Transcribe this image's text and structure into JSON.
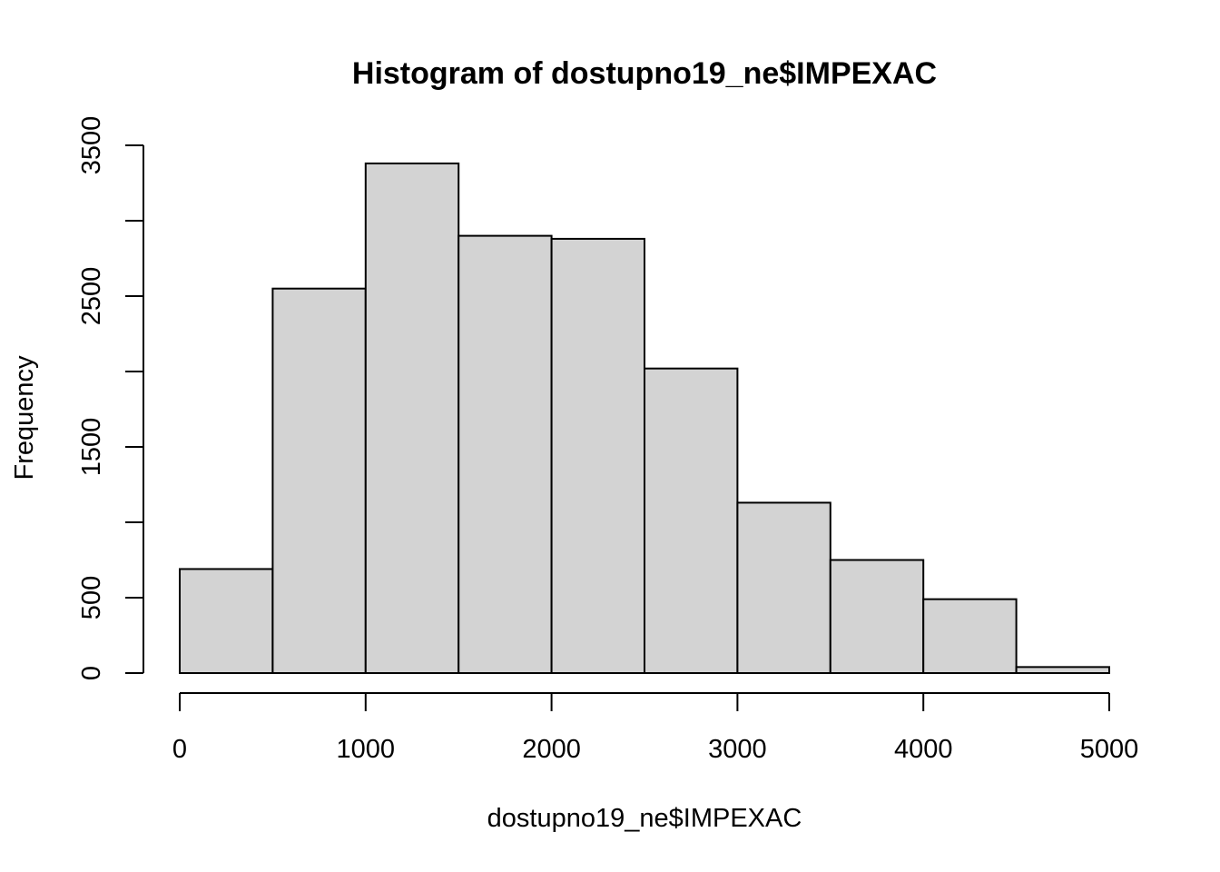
{
  "chart_data": {
    "type": "bar",
    "title": "Histogram of dostupno19_ne$IMPEXAC",
    "xlabel": "dostupno19_ne$IMPEXAC",
    "ylabel": "Frequency",
    "bins": [
      {
        "x0": 0,
        "x1": 500,
        "count": 690
      },
      {
        "x0": 500,
        "x1": 1000,
        "count": 2550
      },
      {
        "x0": 1000,
        "x1": 1500,
        "count": 3380
      },
      {
        "x0": 1500,
        "x1": 2000,
        "count": 2900
      },
      {
        "x0": 2000,
        "x1": 2500,
        "count": 2880
      },
      {
        "x0": 2500,
        "x1": 3000,
        "count": 2020
      },
      {
        "x0": 3000,
        "x1": 3500,
        "count": 1130
      },
      {
        "x0": 3500,
        "x1": 4000,
        "count": 750
      },
      {
        "x0": 4000,
        "x1": 4500,
        "count": 490
      },
      {
        "x0": 4500,
        "x1": 5000,
        "count": 40
      }
    ],
    "xlim": [
      0,
      5000
    ],
    "ylim": [
      0,
      3500
    ],
    "x_ticks": [
      0,
      1000,
      2000,
      3000,
      4000,
      5000
    ],
    "y_ticks": [
      0,
      500,
      1000,
      1500,
      2000,
      2500,
      3000,
      3500
    ],
    "y_tick_labels": [
      "0",
      "500",
      "1500",
      "2500",
      "3500"
    ],
    "grid": false,
    "colors": {
      "bar_fill": "#d3d3d3",
      "bar_stroke": "#000000"
    }
  }
}
